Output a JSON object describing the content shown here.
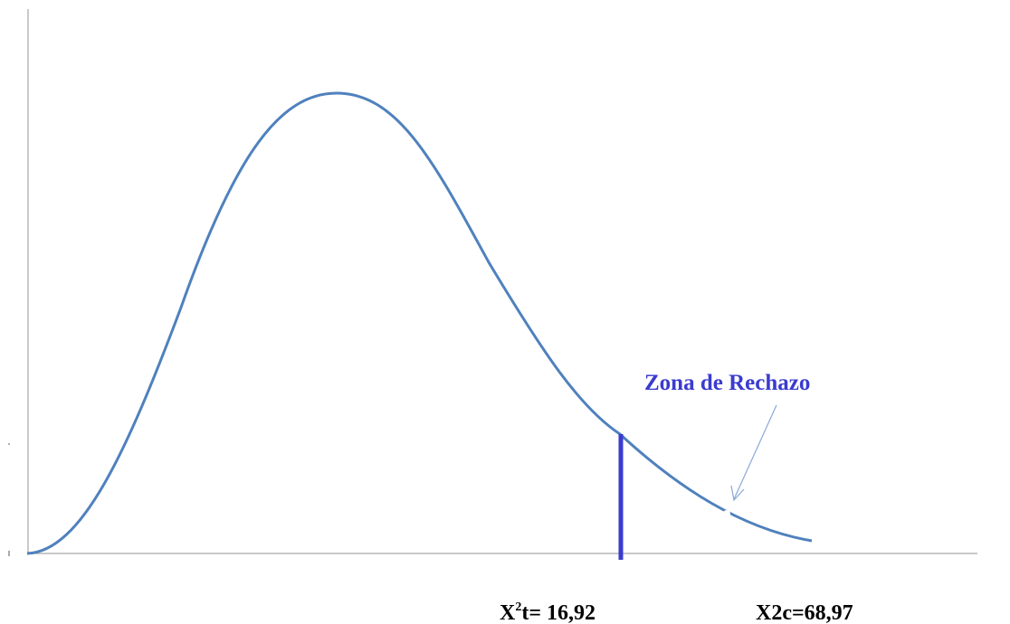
{
  "annotation": "Zona de Rechazo",
  "critical_label": {
    "base": "X",
    "sup": "2",
    "rest": "t= 16,92"
  },
  "calculated_label": "X2c=68,97"
}
